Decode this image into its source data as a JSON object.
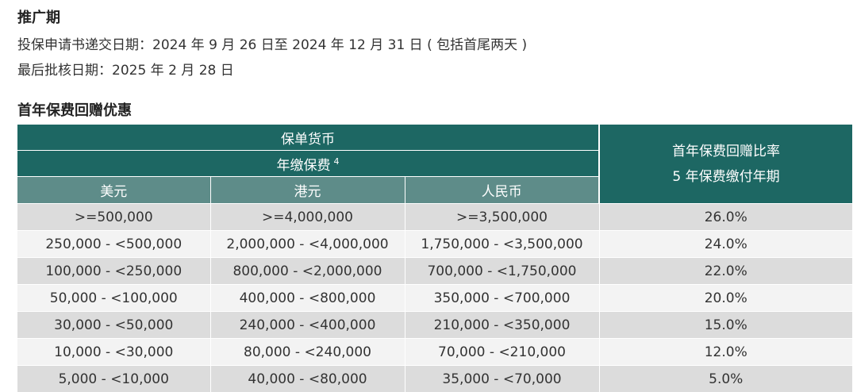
{
  "promo": {
    "title": "推广期",
    "application_period": "投保申请书递交日期：2024 年 9 月 26 日至 2024 年 12 月 31 日 ( 包括首尾两天 )",
    "approval_deadline": "最后批核日期：2025 年 2 月 28 日"
  },
  "offer": {
    "title": "首年保费回赠优惠"
  },
  "table": {
    "header_currency": "保单货币",
    "header_premium": "年缴保费",
    "header_premium_note": "4",
    "header_rate_line1": "首年保费回赠比率",
    "header_rate_line2": "5 年保费缴付年期",
    "col_usd": "美元",
    "col_hkd": "港元",
    "col_rmb": "人民币",
    "rows": [
      {
        "usd": ">=500,000",
        "hkd": ">=4,000,000",
        "rmb": ">=3,500,000",
        "rate": "26.0%"
      },
      {
        "usd": "250,000 - <500,000",
        "hkd": "2,000,000 - <4,000,000",
        "rmb": "1,750,000 - <3,500,000",
        "rate": "24.0%"
      },
      {
        "usd": "100,000 - <250,000",
        "hkd": "800,000 - <2,000,000",
        "rmb": "700,000 - <1,750,000",
        "rate": "22.0%"
      },
      {
        "usd": "50,000 - <100,000",
        "hkd": "400,000 - <800,000",
        "rmb": "350,000 - <700,000",
        "rate": "20.0%"
      },
      {
        "usd": "30,000 - <50,000",
        "hkd": "240,000 - <400,000",
        "rmb": "210,000 - <350,000",
        "rate": "15.0%"
      },
      {
        "usd": "10,000 - <30,000",
        "hkd": "80,000 - <240,000",
        "rmb": "70,000 - <210,000",
        "rate": "12.0%"
      },
      {
        "usd": "5,000 - <10,000",
        "hkd": "40,000 - <80,000",
        "rmb": "35,000 - <70,000",
        "rate": "5.0%"
      }
    ]
  },
  "colors": {
    "header_dark": "#1d6763",
    "header_sub": "#5e8c89",
    "row_odd": "#dcdcdc",
    "row_even": "#f3f3f3"
  }
}
